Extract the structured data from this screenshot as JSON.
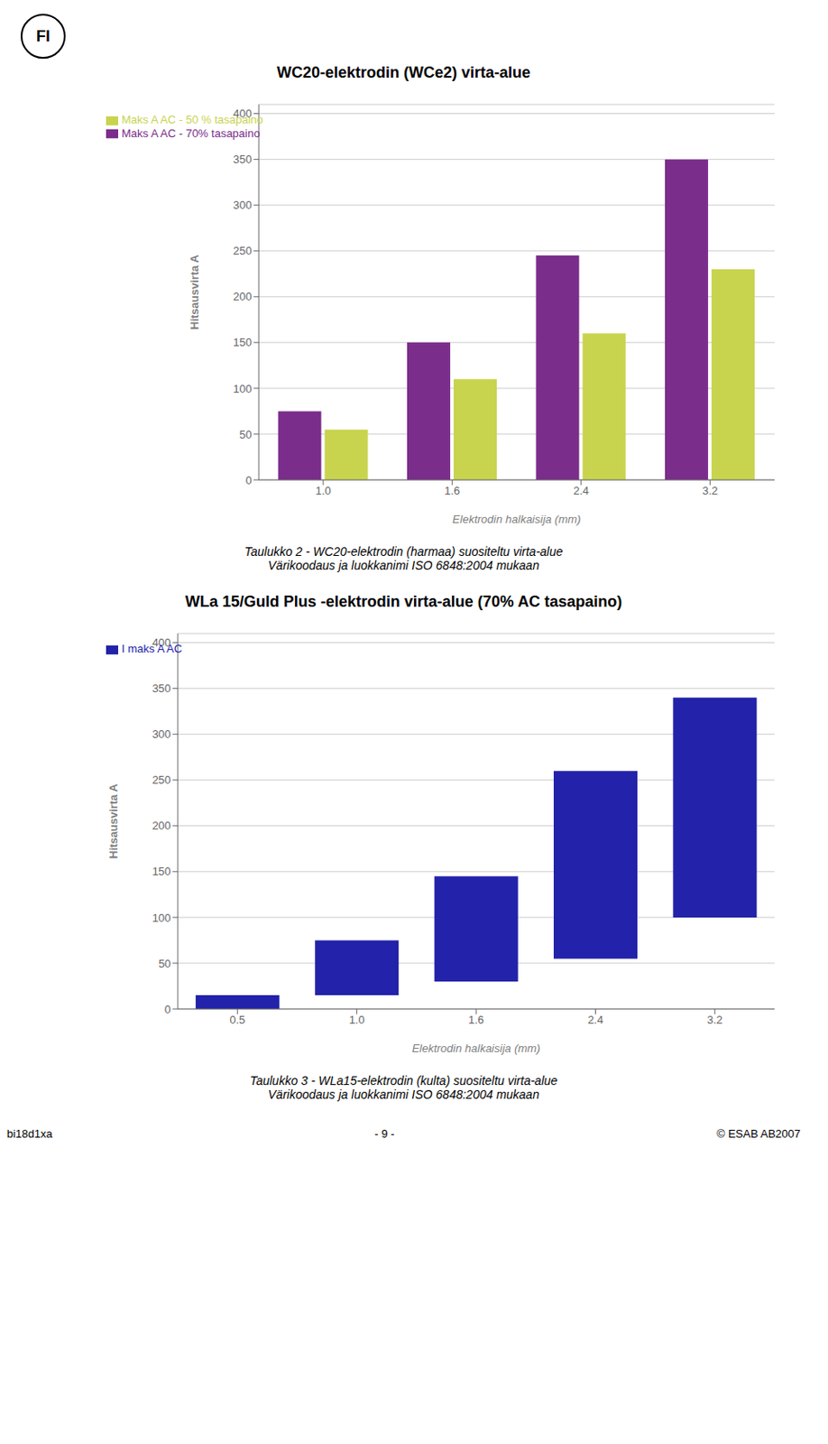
{
  "chart_data": [
    {
      "type": "bar",
      "title": "WC20-elektrodin (WCe2) virta-alue",
      "ylabel": "Hitsausvirta A",
      "xlabel": "Elektrodin halkaisija (mm)",
      "categories": [
        "1.0",
        "1.6",
        "2.4",
        "3.2"
      ],
      "series": [
        {
          "name": "Maks A AC - 70% tasapaino",
          "color": "#7b2d8b",
          "values": [
            75,
            150,
            245,
            350
          ]
        },
        {
          "name": "Maks A AC - 50 % tasapaino",
          "color": "#c8d44e",
          "values": [
            55,
            110,
            160,
            230
          ]
        }
      ],
      "ylim": [
        0,
        410
      ],
      "yticks": [
        0,
        50,
        100,
        150,
        200,
        250,
        300,
        350,
        400
      ],
      "grid": true,
      "legend": "upper left",
      "annotations": [
        "FI",
        "Taulukko 2 - WC20-elektrodin (harmaa) suositeltu virta-alue\nVärikoodaus ja luokkanimi ISO 6848:2004 mukaan"
      ]
    },
    {
      "type": "bar",
      "title": "WLa 15/Guld Plus -elektrodin virta-alue (70% AC tasapaino)",
      "ylabel": "Hitsausvirta A",
      "xlabel": "Elektrodin halkaisija (mm)",
      "categories": [
        "0.5",
        "1.0",
        "1.6",
        "2.4",
        "3.2"
      ],
      "series": [
        {
          "name": "I maks A AC",
          "color": "#2222aa",
          "values": [
            [
              0,
              15
            ],
            [
              15,
              75
            ],
            [
              30,
              145
            ],
            [
              55,
              260
            ],
            [
              100,
              340
            ]
          ]
        }
      ],
      "ylim": [
        0,
        410
      ],
      "yticks": [
        0,
        50,
        100,
        150,
        200,
        250,
        300,
        350,
        400
      ],
      "grid": true,
      "legend": "upper left",
      "annotations": [
        "Taulukko 3 - WLa15-elektrodin (kulta) suositeltu virta-alue\nVärikoodaus ja luokkanimi ISO 6848:2004 mukaan",
        "bi18d1xa",
        "- 9 -",
        "© ESAB AB2007"
      ]
    }
  ]
}
